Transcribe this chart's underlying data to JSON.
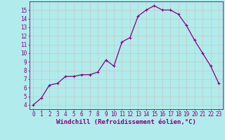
{
  "x": [
    0,
    1,
    2,
    3,
    4,
    5,
    6,
    7,
    8,
    9,
    10,
    11,
    12,
    13,
    14,
    15,
    16,
    17,
    18,
    19,
    20,
    21,
    22,
    23
  ],
  "y": [
    4.0,
    4.8,
    6.3,
    6.5,
    7.3,
    7.3,
    7.5,
    7.5,
    7.8,
    9.2,
    8.5,
    11.3,
    11.8,
    14.3,
    15.0,
    15.5,
    15.0,
    15.0,
    14.5,
    13.2,
    11.5,
    10.0,
    8.5,
    6.5
  ],
  "line_color": "#800080",
  "marker": "+",
  "markersize": 3,
  "markeredgewidth": 0.8,
  "linewidth": 0.9,
  "background_color": "#b2ebeb",
  "grid_color": "#c8c8c8",
  "xlabel": "Windchill (Refroidissement éolien,°C)",
  "xlabel_color": "#800080",
  "tick_color": "#800080",
  "xlim": [
    -0.5,
    23.5
  ],
  "ylim": [
    3.5,
    16.0
  ],
  "yticks": [
    4,
    5,
    6,
    7,
    8,
    9,
    10,
    11,
    12,
    13,
    14,
    15
  ],
  "xticks": [
    0,
    1,
    2,
    3,
    4,
    5,
    6,
    7,
    8,
    9,
    10,
    11,
    12,
    13,
    14,
    15,
    16,
    17,
    18,
    19,
    20,
    21,
    22,
    23
  ],
  "spine_color": "#800080",
  "tick_fontsize": 5.5,
  "xlabel_fontsize": 6.5
}
